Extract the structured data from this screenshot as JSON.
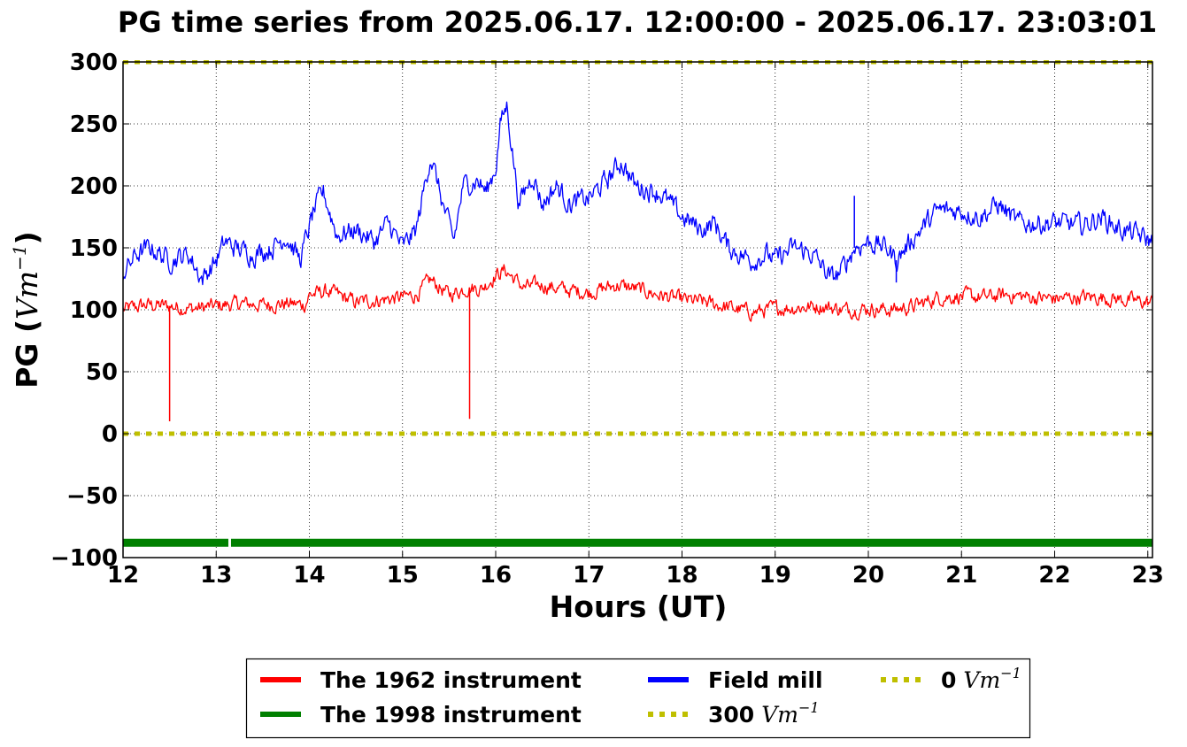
{
  "chart_data": {
    "type": "line",
    "title": "PG time series from 2025.06.17. 12:00:00 - 2025.06.17. 23:03:01",
    "xlabel": "Hours (UT)",
    "ylabel": "PG (Vm⁻¹)",
    "xlim": [
      12,
      23.05
    ],
    "ylim": [
      -100,
      300
    ],
    "xticks": [
      "12",
      "13",
      "14",
      "15",
      "16",
      "17",
      "18",
      "19",
      "20",
      "21",
      "22",
      "23"
    ],
    "yticks": [
      "300",
      "250",
      "200",
      "150",
      "100",
      "50",
      "0",
      "−50",
      "−100"
    ],
    "grid": true,
    "legend_position": "bottom-center",
    "series": [
      {
        "name": "The 1962 instrument",
        "color": "#ff0000",
        "x": [
          12.0,
          12.25,
          12.5,
          12.75,
          13.0,
          13.25,
          13.5,
          13.75,
          13.95,
          14.0,
          14.2,
          14.5,
          14.75,
          15.0,
          15.15,
          15.3,
          15.5,
          15.6,
          15.7,
          15.85,
          16.0,
          16.1,
          16.3,
          16.5,
          16.75,
          17.0,
          17.3,
          17.5,
          17.75,
          18.0,
          18.25,
          18.5,
          18.75,
          19.0,
          19.25,
          19.5,
          19.75,
          20.0,
          20.25,
          20.5,
          20.75,
          21.0,
          21.25,
          21.5,
          21.75,
          22.0,
          22.25,
          22.5,
          22.75,
          23.0,
          23.05
        ],
        "values": [
          100,
          104,
          103,
          101,
          103,
          105,
          104,
          105,
          104,
          112,
          115,
          106,
          108,
          110,
          112,
          124,
          112,
          115,
          118,
          117,
          128,
          132,
          118,
          120,
          116,
          114,
          120,
          117,
          112,
          108,
          106,
          102,
          98,
          101,
          102,
          103,
          100,
          101,
          100,
          103,
          110,
          111,
          110,
          112,
          110,
          109,
          110,
          110,
          108,
          106,
          106
        ],
        "spikes": [
          {
            "x": 12.5,
            "value": 10
          },
          {
            "x": 15.72,
            "value": 12
          }
        ]
      },
      {
        "name": "Field mill",
        "color": "#0000ff",
        "x": [
          12.0,
          12.15,
          12.3,
          12.5,
          12.7,
          12.85,
          13.0,
          13.1,
          13.2,
          13.4,
          13.6,
          13.75,
          13.9,
          14.05,
          14.15,
          14.3,
          14.5,
          14.7,
          14.85,
          15.0,
          15.15,
          15.3,
          15.45,
          15.55,
          15.65,
          15.8,
          15.9,
          16.0,
          16.05,
          16.12,
          16.25,
          16.4,
          16.5,
          16.65,
          16.8,
          17.0,
          17.2,
          17.35,
          17.5,
          17.75,
          18.0,
          18.2,
          18.35,
          18.5,
          18.75,
          18.9,
          19.0,
          19.2,
          19.4,
          19.6,
          19.7,
          19.85,
          20.0,
          20.2,
          20.3,
          20.5,
          20.75,
          21.0,
          21.2,
          21.4,
          21.6,
          21.8,
          22.0,
          22.3,
          22.5,
          22.7,
          22.9,
          23.05
        ],
        "values": [
          130,
          145,
          150,
          140,
          145,
          125,
          140,
          155,
          150,
          145,
          150,
          160,
          140,
          180,
          195,
          160,
          165,
          155,
          170,
          150,
          165,
          225,
          180,
          155,
          200,
          205,
          195,
          215,
          250,
          265,
          185,
          210,
          185,
          200,
          185,
          190,
          205,
          220,
          200,
          195,
          175,
          165,
          170,
          150,
          140,
          145,
          140,
          150,
          145,
          125,
          130,
          150,
          155,
          150,
          140,
          160,
          180,
          180,
          175,
          185,
          170,
          170,
          170,
          168,
          175,
          165,
          160,
          155
        ],
        "spikes": [
          {
            "x": 19.85,
            "value": 192
          },
          {
            "x": 20.3,
            "value": 122
          }
        ]
      },
      {
        "name": "The 1998 instrument",
        "color": "#008000",
        "x": [
          12.0,
          23.05
        ],
        "values": [
          -88,
          -88
        ],
        "gap_at": 13.14
      },
      {
        "name": "300 Vm⁻¹",
        "color": "#bfbf00",
        "style": "dotted",
        "x": [
          12.0,
          23.05
        ],
        "values": [
          300,
          300
        ]
      },
      {
        "name": "0 Vm⁻¹",
        "color": "#bfbf00",
        "style": "dotted",
        "x": [
          12.0,
          23.05
        ],
        "values": [
          0,
          0
        ]
      }
    ]
  },
  "legend": {
    "items": [
      {
        "text": "The 1962 instrument",
        "math": "",
        "color": "#ff0000",
        "style": "solid"
      },
      {
        "text": "The 1998 instrument",
        "math": "",
        "color": "#008000",
        "style": "solid"
      },
      {
        "text": "Field mill",
        "math": "",
        "color": "#0000ff",
        "style": "solid"
      },
      {
        "text": "300",
        "math": "Vm",
        "sup": "−1",
        "color": "#bfbf00",
        "style": "dotted"
      },
      {
        "text": "0",
        "math": "Vm",
        "sup": "−1",
        "color": "#bfbf00",
        "style": "dotted"
      }
    ]
  },
  "ylabel_parts": {
    "prefix": "PG (",
    "math": "Vm",
    "sup": "−1",
    "suffix": ")"
  }
}
